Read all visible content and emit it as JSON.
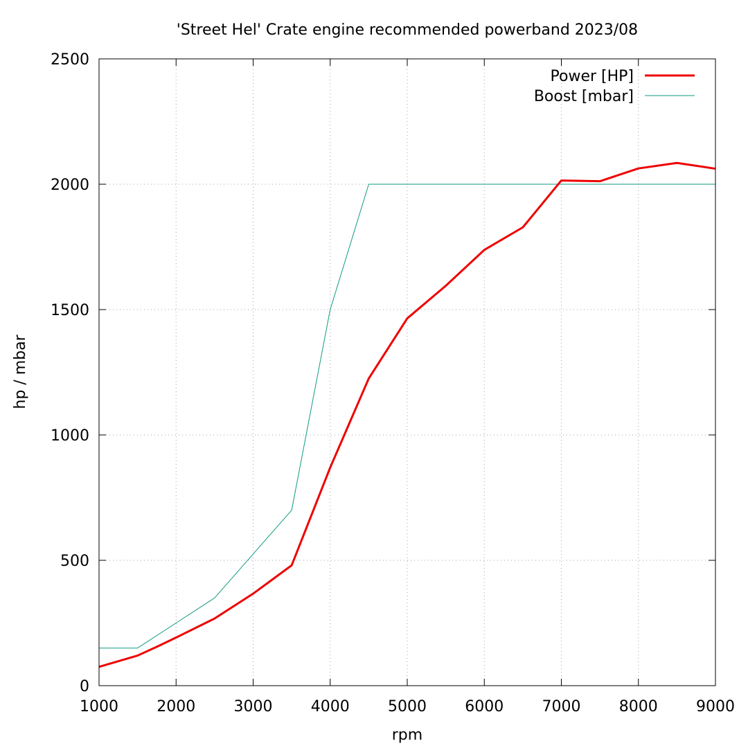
{
  "chart_data": {
    "type": "line",
    "title": "'Street Hel' Crate engine recommended powerband 2023/08",
    "xlabel": "rpm",
    "ylabel": "hp / mbar",
    "xlim": [
      1000,
      9000
    ],
    "ylim": [
      0,
      2500
    ],
    "xticks": [
      "1000",
      "2000",
      "3000",
      "4000",
      "5000",
      "6000",
      "7000",
      "8000",
      "9000"
    ],
    "yticks": [
      "0",
      "500",
      "1000",
      "1500",
      "2000",
      "2500"
    ],
    "grid": true,
    "legend_position": "top-right",
    "series": [
      {
        "name": "Power [HP]",
        "color": "#ee0000",
        "x": [
          1000,
          1500,
          1750,
          2000,
          2500,
          3000,
          3500,
          4000,
          4500,
          5000,
          5500,
          6000,
          6500,
          7000,
          7500,
          8000,
          8500,
          9000
        ],
        "y": [
          75,
          120,
          155,
          192,
          268,
          367,
          480,
          870,
          1225,
          1465,
          1595,
          1738,
          1828,
          2015,
          2012,
          2063,
          2085,
          2062
        ]
      },
      {
        "name": "Boost [mbar]",
        "color": "#109a80",
        "x": [
          1000,
          1500,
          2000,
          2500,
          3000,
          3500,
          4000,
          4500,
          5000,
          5500,
          6000,
          6500,
          7000,
          7500,
          8000,
          8500,
          9000
        ],
        "y": [
          150,
          150,
          250,
          350,
          525,
          700,
          1500,
          2000,
          2000,
          2000,
          2000,
          2000,
          2000,
          2000,
          2000,
          2000,
          2000
        ]
      }
    ]
  }
}
